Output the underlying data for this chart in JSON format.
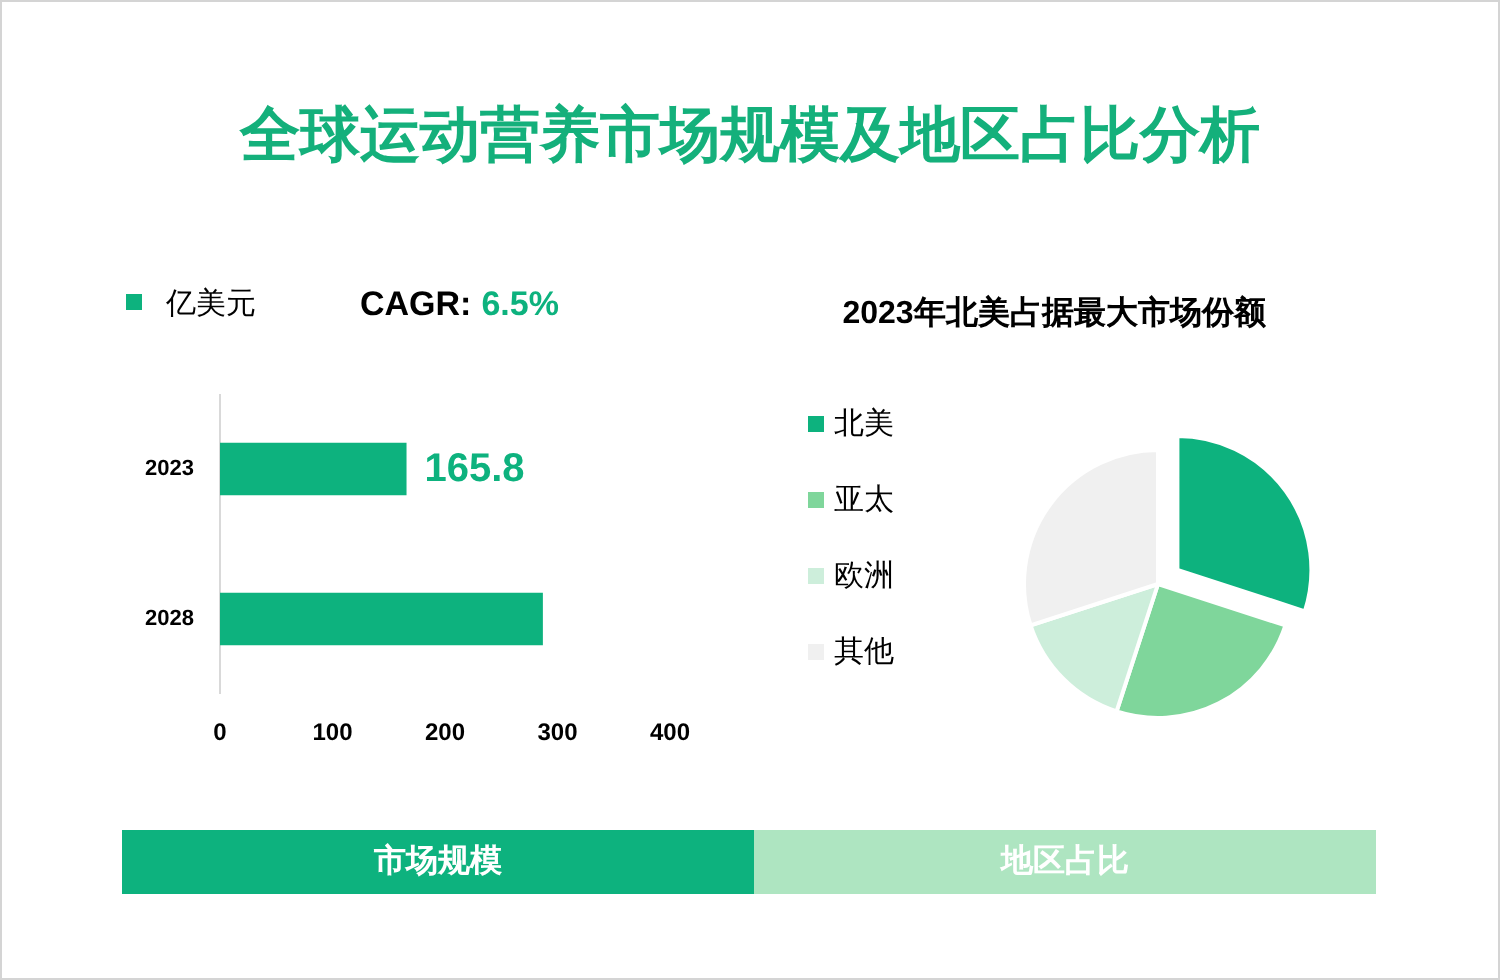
{
  "chart_data": [
    {
      "type": "other",
      "title": "全球运动营养市场规模及地区占比分析"
    },
    {
      "type": "bar",
      "orientation": "horizontal",
      "subtitle": "市场规模",
      "categories": [
        "2023",
        "2028"
      ],
      "series": [
        {
          "name": "亿美元",
          "color": "#0db27e",
          "values": [
            165.8,
            287
          ],
          "value_labels": [
            "165.8",
            null
          ]
        }
      ],
      "xlim": [
        0,
        400
      ],
      "xticks": [
        0,
        100,
        200,
        300,
        400
      ],
      "legend": "top left",
      "annotations": [
        "CAGR:",
        "6.5%"
      ]
    },
    {
      "type": "pie",
      "title": "2023年北美占据最大市场份额",
      "subtitle": "地区占比",
      "categories": [
        "北美",
        "亚太",
        "欧洲",
        "其他"
      ],
      "values": [
        30,
        25,
        15,
        30
      ],
      "colors": [
        "#0db27e",
        "#7fd69b",
        "#cdeedb",
        "#f0f0f0"
      ],
      "legend": "left"
    }
  ]
}
